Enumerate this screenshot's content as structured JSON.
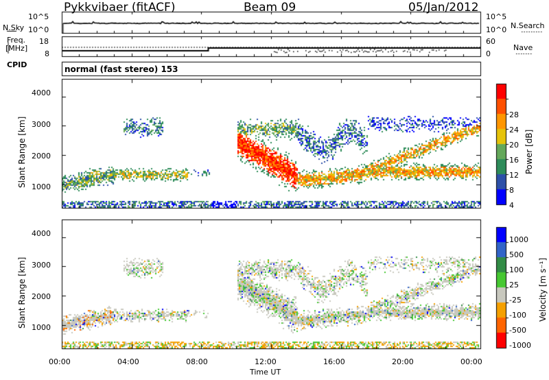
{
  "header": {
    "station": "Pykkvibaer (fitACF)",
    "beam": "Beam 09",
    "date": "05/Jan/2012"
  },
  "noise_panel": {
    "left_label": "N.Sky",
    "right_label": "N.Search",
    "left_ticks": [
      "10^5",
      "10^0"
    ],
    "right_ticks": [
      "10^5",
      "10^0"
    ]
  },
  "freq_panel": {
    "left_label_line1": "Freq.",
    "left_label_line2": "[MHz]",
    "right_label": "Nave",
    "left_ticks": [
      "18",
      "8"
    ],
    "right_ticks": [
      "60",
      "0"
    ]
  },
  "cpid": {
    "label": "CPID",
    "text": "normal (fast stereo) 153"
  },
  "colors": {
    "power": [
      "#0000ff",
      "#2d50a8",
      "#2e8c5a",
      "#64a85a",
      "#e6c30a",
      "#ff9600",
      "#ff5000",
      "#ff0000"
    ],
    "velocity": [
      "#0000ff",
      "#3264c8",
      "#328c46",
      "#46c832",
      "#c8c8be",
      "#f5a000",
      "#ff6400",
      "#ff0000"
    ]
  },
  "chart_data": [
    {
      "type": "heatmap",
      "panel": "power",
      "ylabel": "Slant Range [km]",
      "yticks": [
        "1000",
        "2000",
        "3000",
        "4000"
      ],
      "ylim": [
        200,
        4600
      ],
      "xlim": [
        0,
        24
      ],
      "colorbar_label": "Power [dB]",
      "colorbar_ticks": [
        "4",
        "8",
        "12",
        "16",
        "20",
        "24",
        "28"
      ],
      "colorbar_range": [
        0,
        32
      ]
    },
    {
      "type": "heatmap",
      "panel": "velocity",
      "ylabel": "Slant Range [km]",
      "yticks": [
        "1000",
        "2000",
        "3000",
        "4000"
      ],
      "ylim": [
        200,
        4600
      ],
      "xlim": [
        0,
        24
      ],
      "colorbar_label": "Velocity [m s⁻¹]",
      "colorbar_ticks": [
        "1000",
        "500",
        "100",
        "25",
        "-25",
        "-100",
        "-500",
        "-1000"
      ]
    }
  ],
  "xaxis": {
    "label": "Time UT",
    "ticks": [
      "00:00",
      "04:00",
      "08:00",
      "12:00",
      "16:00",
      "20:00",
      "00:00"
    ]
  }
}
